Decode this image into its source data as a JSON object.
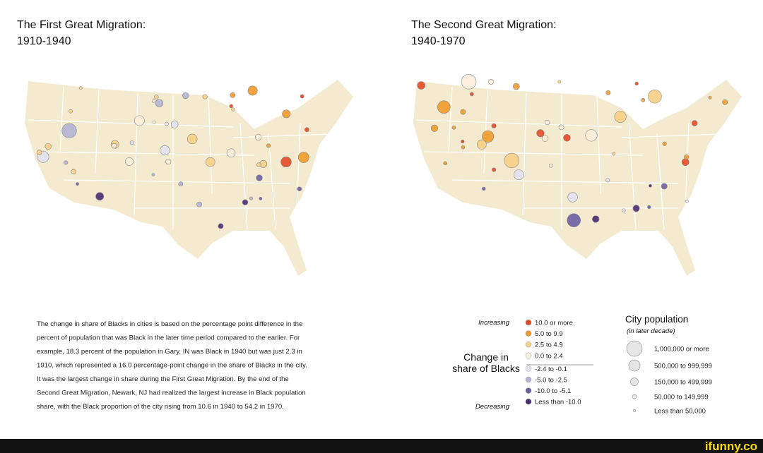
{
  "maps": [
    {
      "title": "The First Great Migration:",
      "subtitle": "1910-1940"
    },
    {
      "title": "The Second Great Migration:",
      "subtitle": "1940-1970"
    }
  ],
  "caption": [
    "The change in share of Blacks in cities is based on the percentage point difference in the",
    "percent of population that was Black in the later time period compared to the earlier.  For",
    "example, 18.3 percent of the population in Gary, IN was Black in 1940 but was just 2.3 in",
    "1910, which represented a 16.0 percentage-point change in the share of Blacks in the city.",
    "It was the largest change in share during the First Great Migration. By the end of the",
    "Second Great Migration, Newark, NJ had realized the largest increase in Black population",
    "share, with the Black proportion of the city rising from 10.6 in 1940 to 54.2 in 1970."
  ],
  "change_legend": {
    "title": [
      "Change in",
      "share of Blacks"
    ],
    "increasing": "Increasing",
    "decreasing": "Decreasing",
    "items": [
      {
        "label": "10.0 or more",
        "color": "#e34a26"
      },
      {
        "label": "5.0 to 9.9",
        "color": "#ef9a2a"
      },
      {
        "label": "2.5 to 4.9",
        "color": "#f7cf85"
      },
      {
        "label": "0.0 to 2.4",
        "color": "#fbeedc"
      },
      {
        "label": "-2.4 to -0.1",
        "color": "#e2e2f0"
      },
      {
        "label": "-5.0 to -2.5",
        "color": "#b4b4d4"
      },
      {
        "label": "-10.0 to -5.1",
        "color": "#6c5ea3"
      },
      {
        "label": "Less than -10.0",
        "color": "#4a2a72"
      }
    ]
  },
  "population_legend": {
    "title": "City population",
    "subtitle": "(in later decade)",
    "items": [
      "1,000,000 or more",
      "500,000 to 999,999",
      "150,000 to 499,999",
      "50,000 to 149,999",
      "Less than 50,000"
    ]
  },
  "footer": "ifunny.co"
}
